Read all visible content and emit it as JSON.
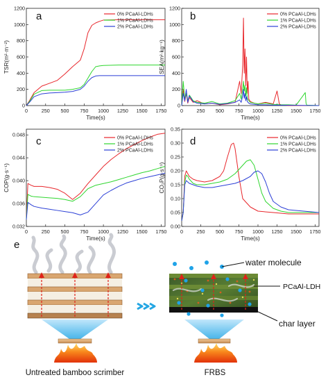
{
  "figure": {
    "panels": [
      {
        "id": "a",
        "letter": "a",
        "ylabel": "TSR(m²·m⁻²)",
        "xlabel": "Time(s)"
      },
      {
        "id": "b",
        "letter": "b",
        "ylabel": "SEA(m²·kg⁻¹)",
        "xlabel": "Time(s)"
      },
      {
        "id": "c",
        "letter": "c",
        "ylabel": "COP(g·s⁻¹)",
        "xlabel": "Time(s)"
      },
      {
        "id": "d",
        "letter": "d",
        "ylabel": "CO₂P(g·s⁻¹)",
        "xlabel": "Time(s)"
      }
    ],
    "colors": {
      "s0": "#e8262b",
      "s1": "#2fd62f",
      "s2": "#2b3fd6"
    },
    "schematic": {
      "letter": "e",
      "left_caption": "Untreated bamboo scrimber",
      "right_caption": "FRBS",
      "label_water": "water molecule",
      "label_pcaal": "PCaAl-LDH",
      "label_char": "char layer"
    }
  },
  "chart_data": [
    {
      "id": "a",
      "type": "line",
      "xlabel": "Time(s)",
      "ylabel": "TSR(m²·m⁻²)",
      "xlim": [
        0,
        1800
      ],
      "ylim": [
        0,
        1200
      ],
      "xticks": [
        0,
        250,
        500,
        750,
        1000,
        1250,
        1500,
        1750
      ],
      "yticks": [
        0,
        200,
        400,
        600,
        800,
        1000,
        1200
      ],
      "legend_position": "top-right",
      "series": [
        {
          "name": "0% PCaAl-LDHs",
          "color": "#e8262b",
          "x": [
            0,
            40,
            100,
            200,
            300,
            400,
            500,
            600,
            700,
            750,
            800,
            850,
            900,
            950,
            1000,
            1200,
            1500,
            1800
          ],
          "y": [
            0,
            60,
            160,
            240,
            275,
            310,
            390,
            480,
            560,
            700,
            900,
            990,
            1020,
            1040,
            1055,
            1060,
            1060,
            1060
          ]
        },
        {
          "name": "1% PCaAl-LDHs",
          "color": "#2fd62f",
          "x": [
            0,
            40,
            100,
            200,
            300,
            400,
            500,
            600,
            700,
            750,
            800,
            850,
            900,
            950,
            1000,
            1200,
            1500,
            1800
          ],
          "y": [
            0,
            50,
            140,
            185,
            190,
            190,
            190,
            200,
            220,
            260,
            340,
            420,
            480,
            490,
            495,
            500,
            500,
            500
          ]
        },
        {
          "name": "2% PCaAl-LDHs",
          "color": "#2b3fd6",
          "x": [
            0,
            40,
            100,
            200,
            300,
            400,
            500,
            600,
            700,
            750,
            800,
            850,
            900,
            950,
            1000,
            1200,
            1500,
            1800
          ],
          "y": [
            0,
            40,
            110,
            145,
            155,
            160,
            165,
            175,
            200,
            240,
            300,
            345,
            365,
            370,
            370,
            370,
            370,
            370
          ]
        }
      ]
    },
    {
      "id": "b",
      "type": "line",
      "xlabel": "Time(s)",
      "ylabel": "SEA(m²·kg⁻¹)",
      "xlim": [
        0,
        1800
      ],
      "ylim": [
        0,
        1200
      ],
      "xticks": [
        0,
        250,
        500,
        750,
        1000,
        1250,
        1500,
        1750
      ],
      "yticks": [
        0,
        200,
        400,
        600,
        800,
        1000,
        1200
      ],
      "legend_position": "top-right",
      "series": [
        {
          "name": "0% PCaAl-LDHs",
          "color": "#e8262b",
          "x": [
            0,
            20,
            40,
            60,
            80,
            100,
            150,
            200,
            300,
            400,
            500,
            600,
            700,
            760,
            780,
            800,
            810,
            820,
            830,
            840,
            850,
            860,
            870,
            880,
            900,
            950,
            1000,
            1100,
            1200,
            1250,
            1280,
            1300,
            1400,
            1600,
            1800
          ],
          "y": [
            0,
            200,
            50,
            150,
            30,
            100,
            40,
            60,
            20,
            30,
            10,
            20,
            40,
            300,
            150,
            500,
            1080,
            400,
            700,
            250,
            600,
            150,
            300,
            80,
            50,
            30,
            20,
            40,
            20,
            180,
            20,
            10,
            0,
            0,
            0
          ]
        },
        {
          "name": "1% PCaAl-LDHs",
          "color": "#2fd62f",
          "x": [
            0,
            20,
            40,
            60,
            80,
            100,
            150,
            200,
            300,
            400,
            500,
            600,
            700,
            760,
            780,
            800,
            810,
            820,
            830,
            840,
            850,
            860,
            880,
            900,
            950,
            1000,
            1100,
            1200,
            1300,
            1400,
            1500,
            1620,
            1630,
            1640,
            1800
          ],
          "y": [
            0,
            300,
            80,
            150,
            50,
            130,
            60,
            40,
            30,
            50,
            20,
            30,
            60,
            150,
            80,
            200,
            300,
            180,
            250,
            120,
            220,
            90,
            60,
            40,
            30,
            20,
            30,
            15,
            10,
            10,
            5,
            160,
            30,
            5,
            0
          ]
        },
        {
          "name": "2% PCaAl-LDHs",
          "color": "#2b3fd6",
          "x": [
            0,
            20,
            40,
            60,
            80,
            100,
            150,
            200,
            300,
            400,
            500,
            600,
            700,
            760,
            780,
            800,
            810,
            820,
            830,
            840,
            850,
            860,
            880,
            900,
            950,
            1000,
            1100,
            1200,
            1300,
            1800
          ],
          "y": [
            0,
            150,
            60,
            200,
            40,
            120,
            50,
            30,
            20,
            30,
            15,
            25,
            40,
            70,
            40,
            120,
            200,
            90,
            150,
            60,
            110,
            50,
            30,
            20,
            15,
            10,
            10,
            5,
            5,
            0
          ]
        }
      ]
    },
    {
      "id": "c",
      "type": "line",
      "xlabel": "Time(s)",
      "ylabel": "COP(g·s⁻¹)",
      "xlim": [
        0,
        1800
      ],
      "ylim": [
        0.032,
        0.049
      ],
      "xticks": [
        0,
        250,
        500,
        750,
        1000,
        1250,
        1500,
        1750
      ],
      "yticks": [
        0.032,
        0.036,
        0.04,
        0.044,
        0.048
      ],
      "legend_position": "top-right",
      "series": [
        {
          "name": "0% PCaAl-LDHs",
          "color": "#e8262b",
          "x": [
            0,
            20,
            60,
            100,
            200,
            300,
            400,
            500,
            600,
            700,
            800,
            900,
            1000,
            1100,
            1200,
            1300,
            1400,
            1500,
            1600,
            1700,
            1800
          ],
          "y": [
            0.0335,
            0.0395,
            0.0392,
            0.039,
            0.039,
            0.0388,
            0.0385,
            0.0378,
            0.0367,
            0.0378,
            0.0395,
            0.041,
            0.0425,
            0.0437,
            0.0447,
            0.0456,
            0.0463,
            0.047,
            0.0476,
            0.0481,
            0.0483
          ]
        },
        {
          "name": "1% PCaAl-LDHs",
          "color": "#2fd62f",
          "x": [
            0,
            20,
            60,
            100,
            200,
            300,
            400,
            500,
            600,
            700,
            800,
            900,
            1000,
            1100,
            1200,
            1300,
            1400,
            1500,
            1600,
            1700,
            1800
          ],
          "y": [
            0.0333,
            0.0376,
            0.0373,
            0.0372,
            0.0371,
            0.037,
            0.0369,
            0.0367,
            0.0364,
            0.0372,
            0.0386,
            0.0392,
            0.0395,
            0.0398,
            0.0402,
            0.0406,
            0.041,
            0.0414,
            0.0417,
            0.0421,
            0.0425
          ]
        },
        {
          "name": "2% PCaAl-LDHs",
          "color": "#2b3fd6",
          "x": [
            0,
            20,
            60,
            100,
            200,
            300,
            400,
            500,
            600,
            700,
            800,
            900,
            1000,
            1100,
            1200,
            1300,
            1400,
            1500,
            1600,
            1700,
            1800
          ],
          "y": [
            0.0332,
            0.0362,
            0.0358,
            0.0355,
            0.0352,
            0.035,
            0.0348,
            0.0346,
            0.0344,
            0.034,
            0.0345,
            0.036,
            0.0375,
            0.0383,
            0.039,
            0.0396,
            0.04,
            0.0404,
            0.0407,
            0.041,
            0.0413
          ]
        }
      ]
    },
    {
      "id": "d",
      "type": "line",
      "xlabel": "Time(s)",
      "ylabel": "CO₂P(g·s⁻¹)",
      "xlim": [
        0,
        1800
      ],
      "ylim": [
        0,
        0.35
      ],
      "xticks": [
        0,
        250,
        500,
        750,
        1000,
        1250,
        1500,
        1750
      ],
      "yticks": [
        0.0,
        0.05,
        0.1,
        0.15,
        0.2,
        0.25,
        0.3,
        0.35
      ],
      "legend_position": "top-right",
      "series": [
        {
          "name": "0% PCaAl-LDHs",
          "color": "#e8262b",
          "x": [
            0,
            20,
            40,
            60,
            80,
            100,
            150,
            200,
            300,
            400,
            500,
            550,
            600,
            650,
            680,
            700,
            750,
            800,
            900,
            1000,
            1200,
            1400,
            1600,
            1800
          ],
          "y": [
            0.02,
            0.05,
            0.18,
            0.2,
            0.19,
            0.18,
            0.17,
            0.165,
            0.16,
            0.165,
            0.18,
            0.2,
            0.25,
            0.295,
            0.3,
            0.28,
            0.18,
            0.1,
            0.07,
            0.055,
            0.05,
            0.045,
            0.045,
            0.045
          ]
        },
        {
          "name": "1% PCaAl-LDHs",
          "color": "#2fd62f",
          "x": [
            0,
            20,
            40,
            60,
            80,
            100,
            150,
            200,
            300,
            400,
            500,
            600,
            700,
            800,
            850,
            900,
            950,
            1000,
            1050,
            1100,
            1200,
            1300,
            1400,
            1600,
            1800
          ],
          "y": [
            0.02,
            0.05,
            0.16,
            0.185,
            0.18,
            0.17,
            0.155,
            0.15,
            0.15,
            0.155,
            0.16,
            0.17,
            0.19,
            0.22,
            0.235,
            0.24,
            0.22,
            0.17,
            0.12,
            0.09,
            0.065,
            0.055,
            0.05,
            0.05,
            0.05
          ]
        },
        {
          "name": "2% PCaAl-LDHs",
          "color": "#2b3fd6",
          "x": [
            0,
            20,
            40,
            60,
            80,
            100,
            150,
            200,
            300,
            400,
            500,
            600,
            700,
            800,
            900,
            950,
            1000,
            1050,
            1100,
            1150,
            1200,
            1300,
            1400,
            1600,
            1800
          ],
          "y": [
            0.02,
            0.05,
            0.15,
            0.165,
            0.16,
            0.155,
            0.15,
            0.145,
            0.14,
            0.14,
            0.145,
            0.15,
            0.155,
            0.165,
            0.18,
            0.195,
            0.2,
            0.19,
            0.16,
            0.12,
            0.09,
            0.07,
            0.06,
            0.055,
            0.05
          ]
        }
      ]
    }
  ]
}
